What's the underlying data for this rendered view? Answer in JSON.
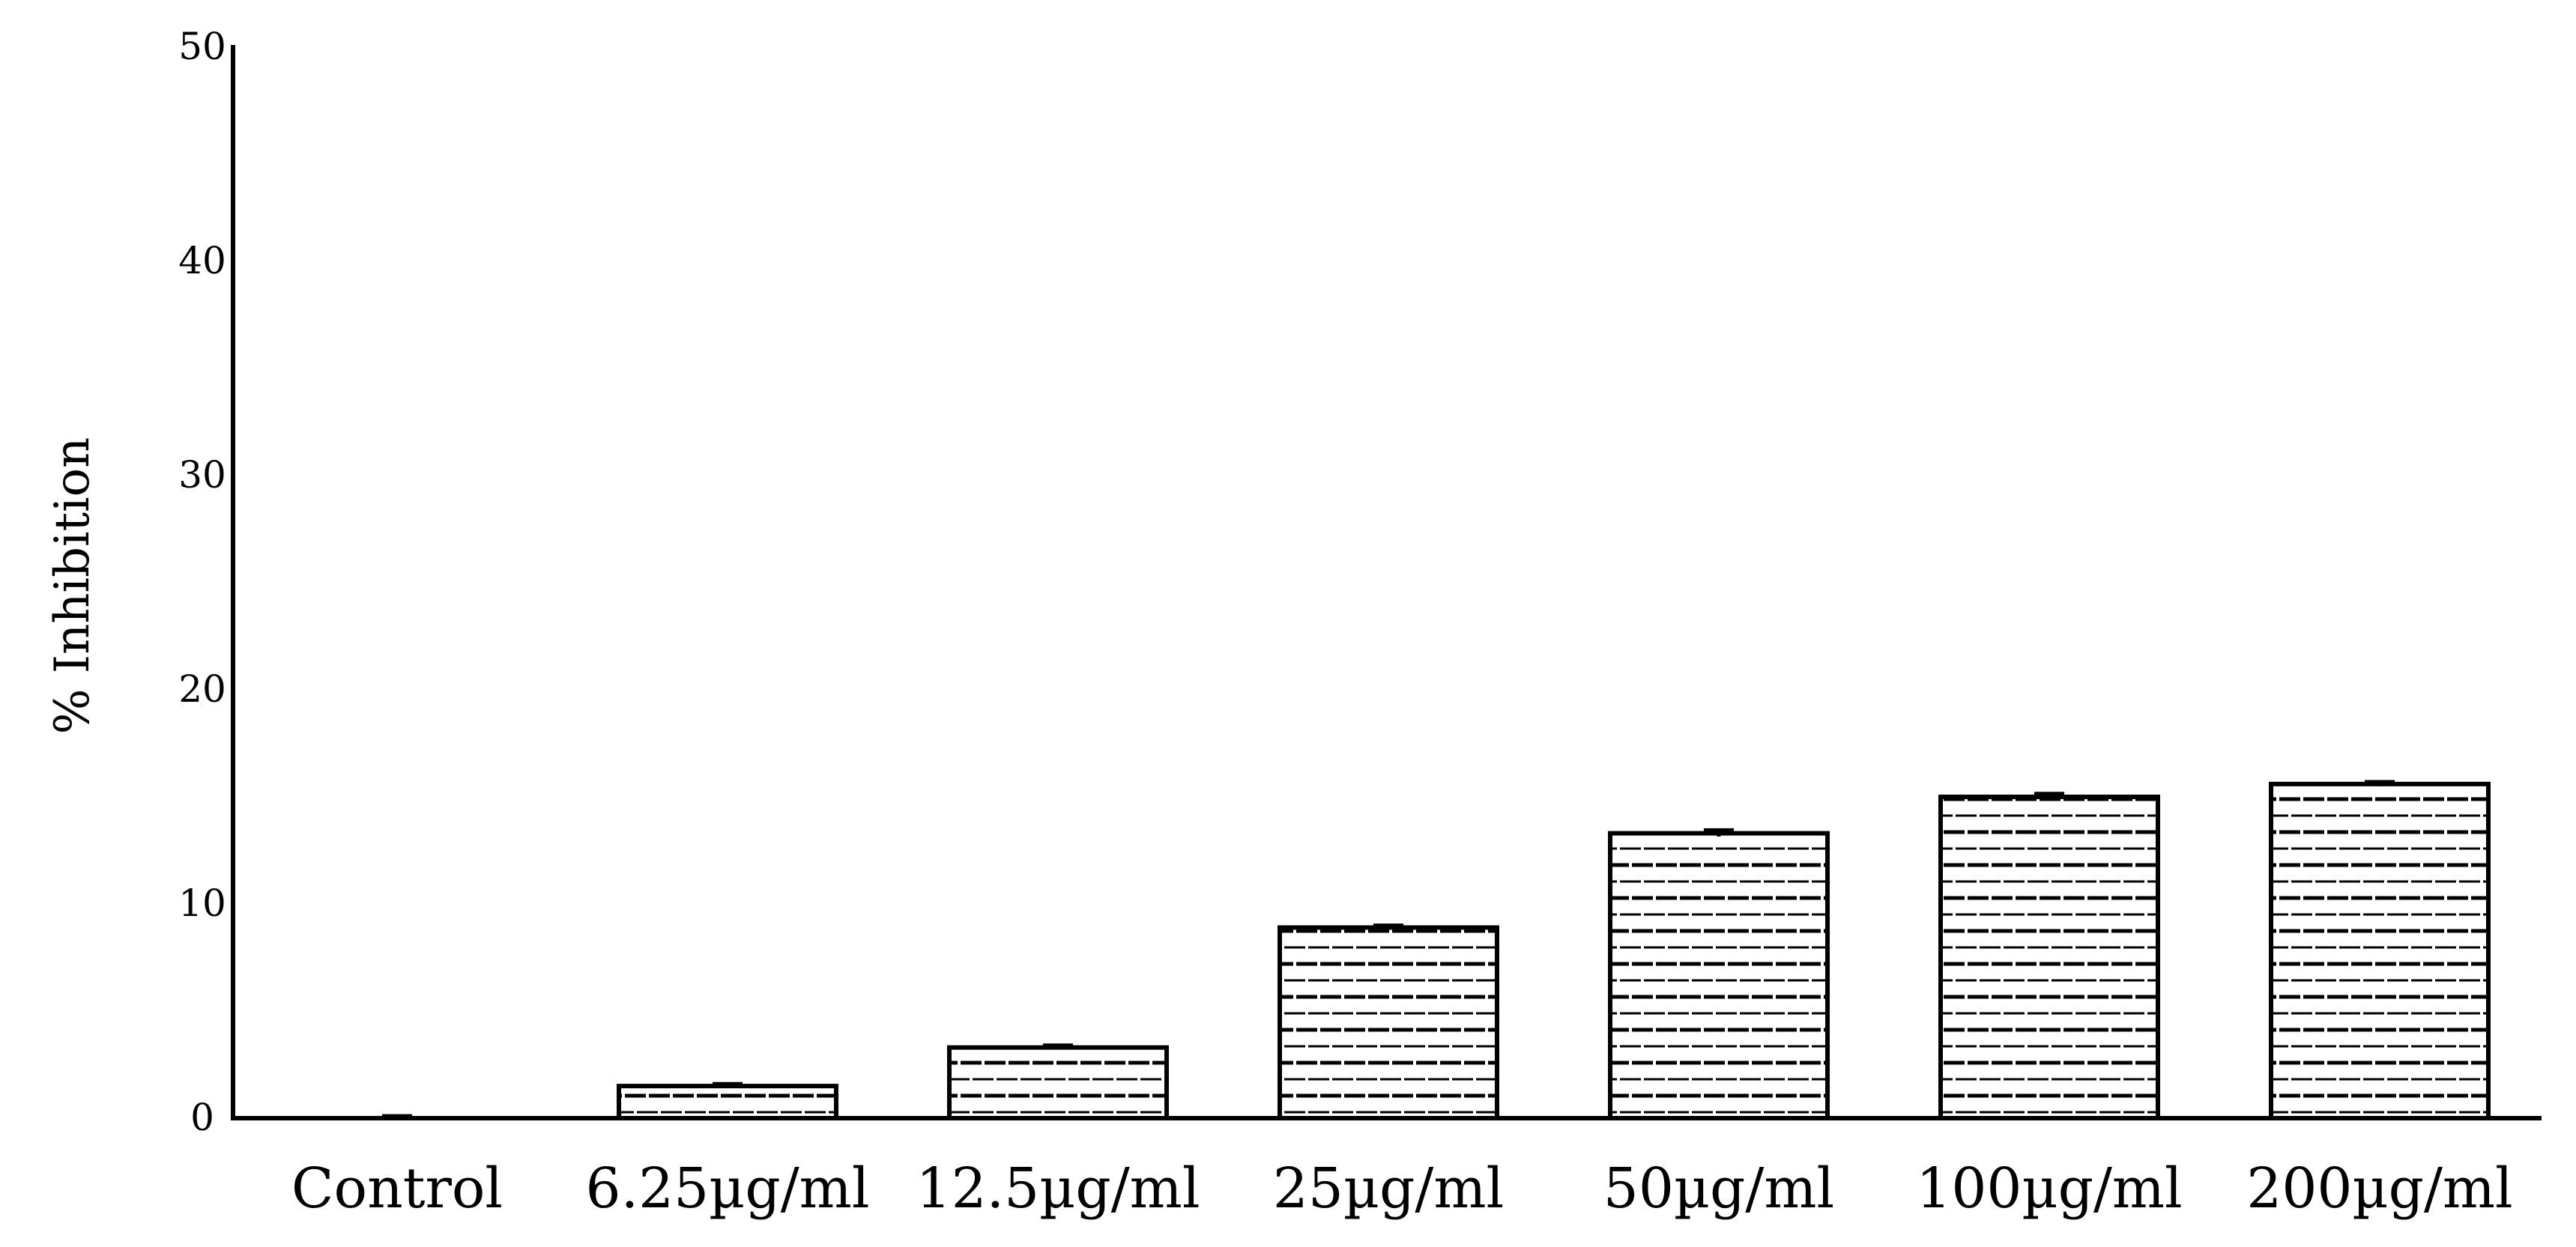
{
  "chart_data": {
    "type": "bar",
    "title": "",
    "xlabel": "",
    "ylabel": "% Inhibition",
    "ylim": [
      0,
      50
    ],
    "yticks": [
      0,
      10,
      20,
      30,
      40,
      50
    ],
    "ytick_labels": [
      "0",
      "10",
      "20",
      "30",
      "40",
      "50"
    ],
    "categories": [
      "Control",
      "6.25µg/ml",
      "12.5µg/ml",
      "25µg/ml",
      "50µg/ml",
      "100µg/ml",
      "200µg/ml"
    ],
    "values": [
      0,
      1.5,
      3.3,
      8.9,
      13.3,
      15.0,
      15.6
    ],
    "errors": [
      0.1,
      0.1,
      0.1,
      0.1,
      0.15,
      0.15,
      0.1
    ],
    "bar_fill": "dashed-horizontal-pattern",
    "bar_stroke": "#000000",
    "grid": false,
    "legend": "none"
  }
}
